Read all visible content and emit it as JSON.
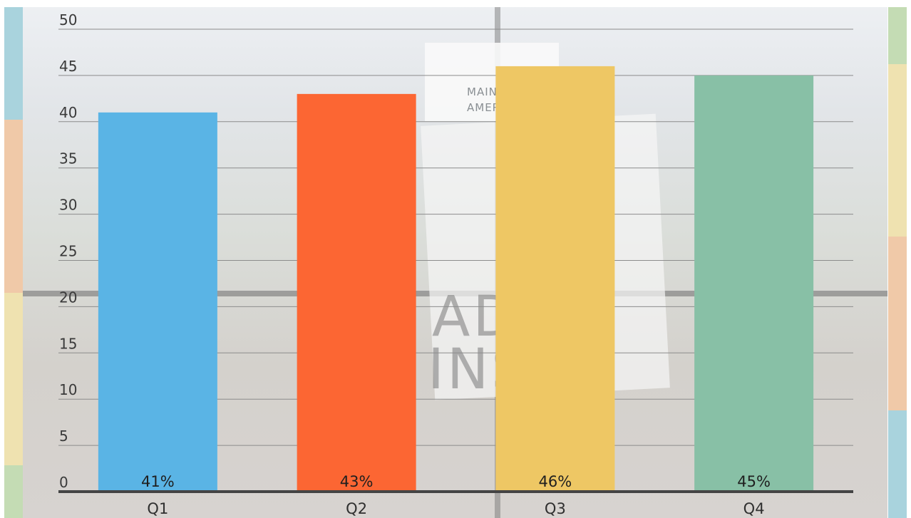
{
  "chart_data": {
    "type": "bar",
    "categories": [
      "Q1",
      "Q2",
      "Q3",
      "Q4"
    ],
    "values": [
      41,
      43,
      46,
      45
    ],
    "data_labels": [
      "41%",
      "43%",
      "46%",
      "45%"
    ],
    "title": "",
    "xlabel": "",
    "ylabel": "",
    "ylim": [
      0,
      50
    ],
    "yticks": [
      "0",
      "5",
      "10",
      "15",
      "20",
      "25",
      "30",
      "35",
      "40",
      "45",
      "50"
    ],
    "grid": true,
    "legend": "none",
    "colors": [
      "#5ab4e5",
      "#fc6633",
      "#eec764",
      "#88c0a6"
    ]
  },
  "background": {
    "logo_lines": [
      "MAIN",
      "AMER"
    ],
    "poster_lines": [
      "ADV E",
      "INS T"
    ]
  },
  "colors": {
    "axis": "#444444",
    "gridline": "#8c8c8c",
    "stripe_blue": "#a9d3dd",
    "stripe_peach": "#f0c9a8",
    "stripe_yellow": "#efe2b0",
    "stripe_green": "#c4dcb4"
  }
}
